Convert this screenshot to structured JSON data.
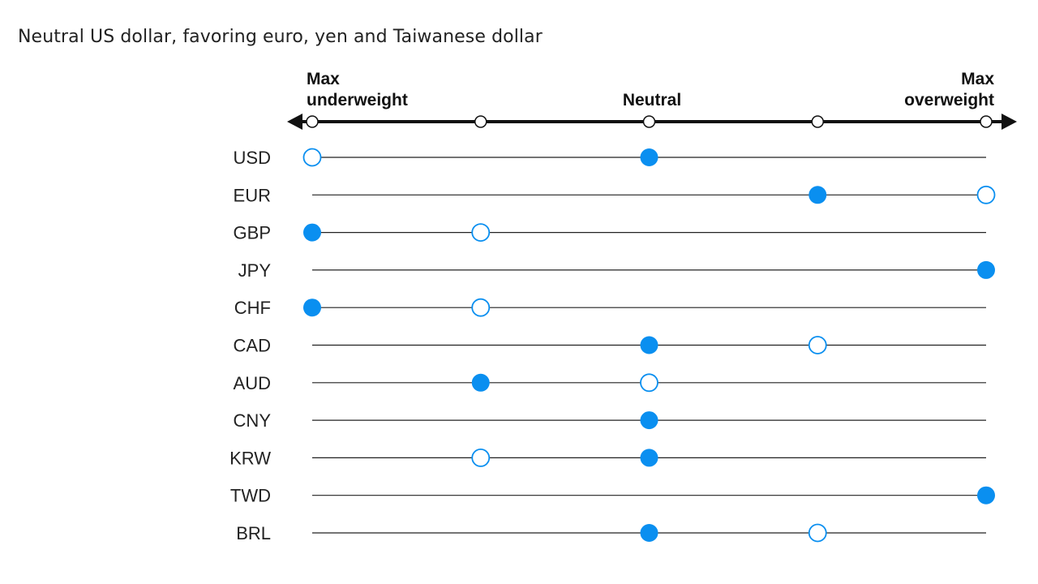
{
  "title": "Neutral US dollar, favoring euro, yen and Taiwanese dollar",
  "chart_data": {
    "type": "scatter",
    "title": "Neutral US dollar, favoring euro, yen and Taiwanese dollar",
    "scale": {
      "levels": 5,
      "min_label_line1": "Max",
      "min_label_line2": "underweight",
      "mid_label": "Neutral",
      "max_label_line1": "Max",
      "max_label_line2": "overweight"
    },
    "categories": [
      "USD",
      "EUR",
      "GBP",
      "JPY",
      "CHF",
      "CAD",
      "AUD",
      "CNY",
      "KRW",
      "TWD",
      "BRL"
    ],
    "series": [
      {
        "marker": "filled",
        "values": [
          2,
          3,
          0,
          4,
          0,
          2,
          1,
          2,
          2,
          4,
          2
        ]
      },
      {
        "marker": "hollow",
        "values": [
          0,
          4,
          1,
          null,
          1,
          3,
          2,
          null,
          1,
          null,
          3
        ]
      }
    ],
    "colors": {
      "accent": "#0a8ff0",
      "axis": "#111111",
      "line": "#222222",
      "text": "#222222"
    }
  }
}
